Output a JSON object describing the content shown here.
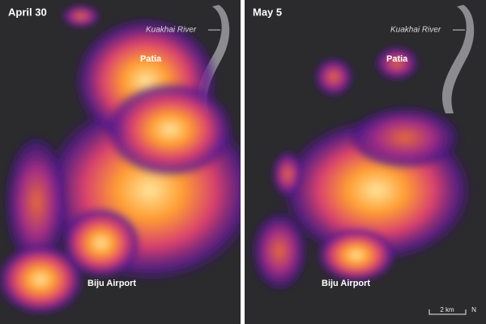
{
  "panels": [
    {
      "date": "April 30",
      "labels": {
        "river": "Kuakhai River",
        "north": "Patia",
        "south": "Biju Airport"
      }
    },
    {
      "date": "May 5",
      "labels": {
        "river": "Kuakhai River",
        "north": "Patia",
        "south": "Biju Airport"
      }
    }
  ],
  "scale_bar": {
    "label": "2 km"
  },
  "compass": {
    "label": "N"
  }
}
